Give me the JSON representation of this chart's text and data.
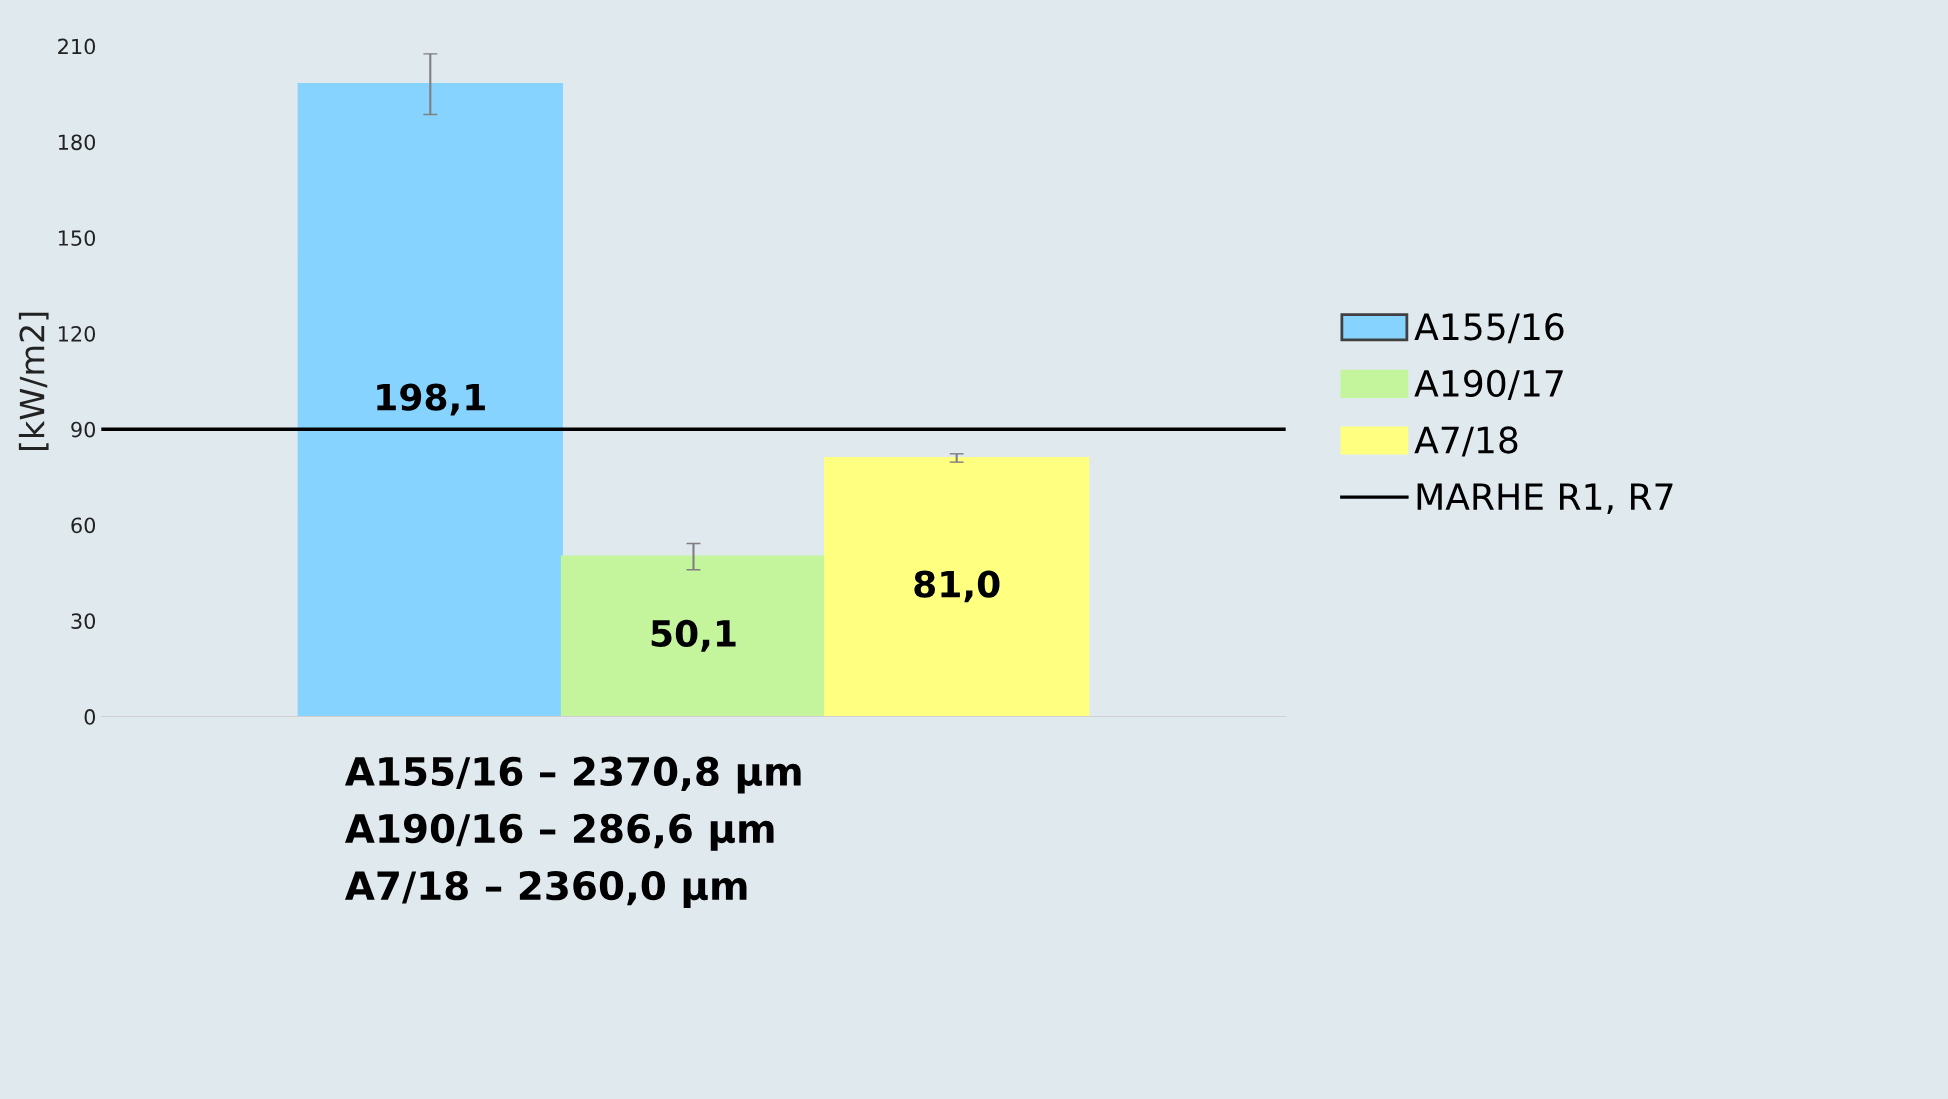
{
  "chart_data": {
    "type": "bar",
    "categories": [
      null
    ],
    "ylabel": "[kW/m2]",
    "ylim": [
      0,
      210
    ],
    "yticks": [
      0,
      30,
      60,
      90,
      120,
      150,
      180,
      210
    ],
    "grid": false,
    "legend": "right",
    "series": [
      {
        "name": "A155/16",
        "color": "#87d3ff",
        "values": [
          198.1
        ],
        "errors": [
          9.5
        ],
        "value_labels": [
          "198,1"
        ]
      },
      {
        "name": "A190/17",
        "color": "#c4f59c",
        "values": [
          50.1
        ],
        "errors": [
          4.1
        ],
        "value_labels": [
          "50,1"
        ]
      },
      {
        "name": "A7/18",
        "color": "#ffff80",
        "values": [
          81.0
        ],
        "errors": [
          1.3
        ],
        "value_labels": [
          "81,0"
        ]
      }
    ],
    "ref_lines": [
      {
        "axis": "y",
        "value": 90,
        "label": "MARHE R1, R7",
        "color": "#000000"
      }
    ],
    "annotations": [
      "A155/16 – 2370,8 µm",
      "A190/16 – 286,6 µm",
      "A7/18 – 2360,0 µm"
    ]
  }
}
